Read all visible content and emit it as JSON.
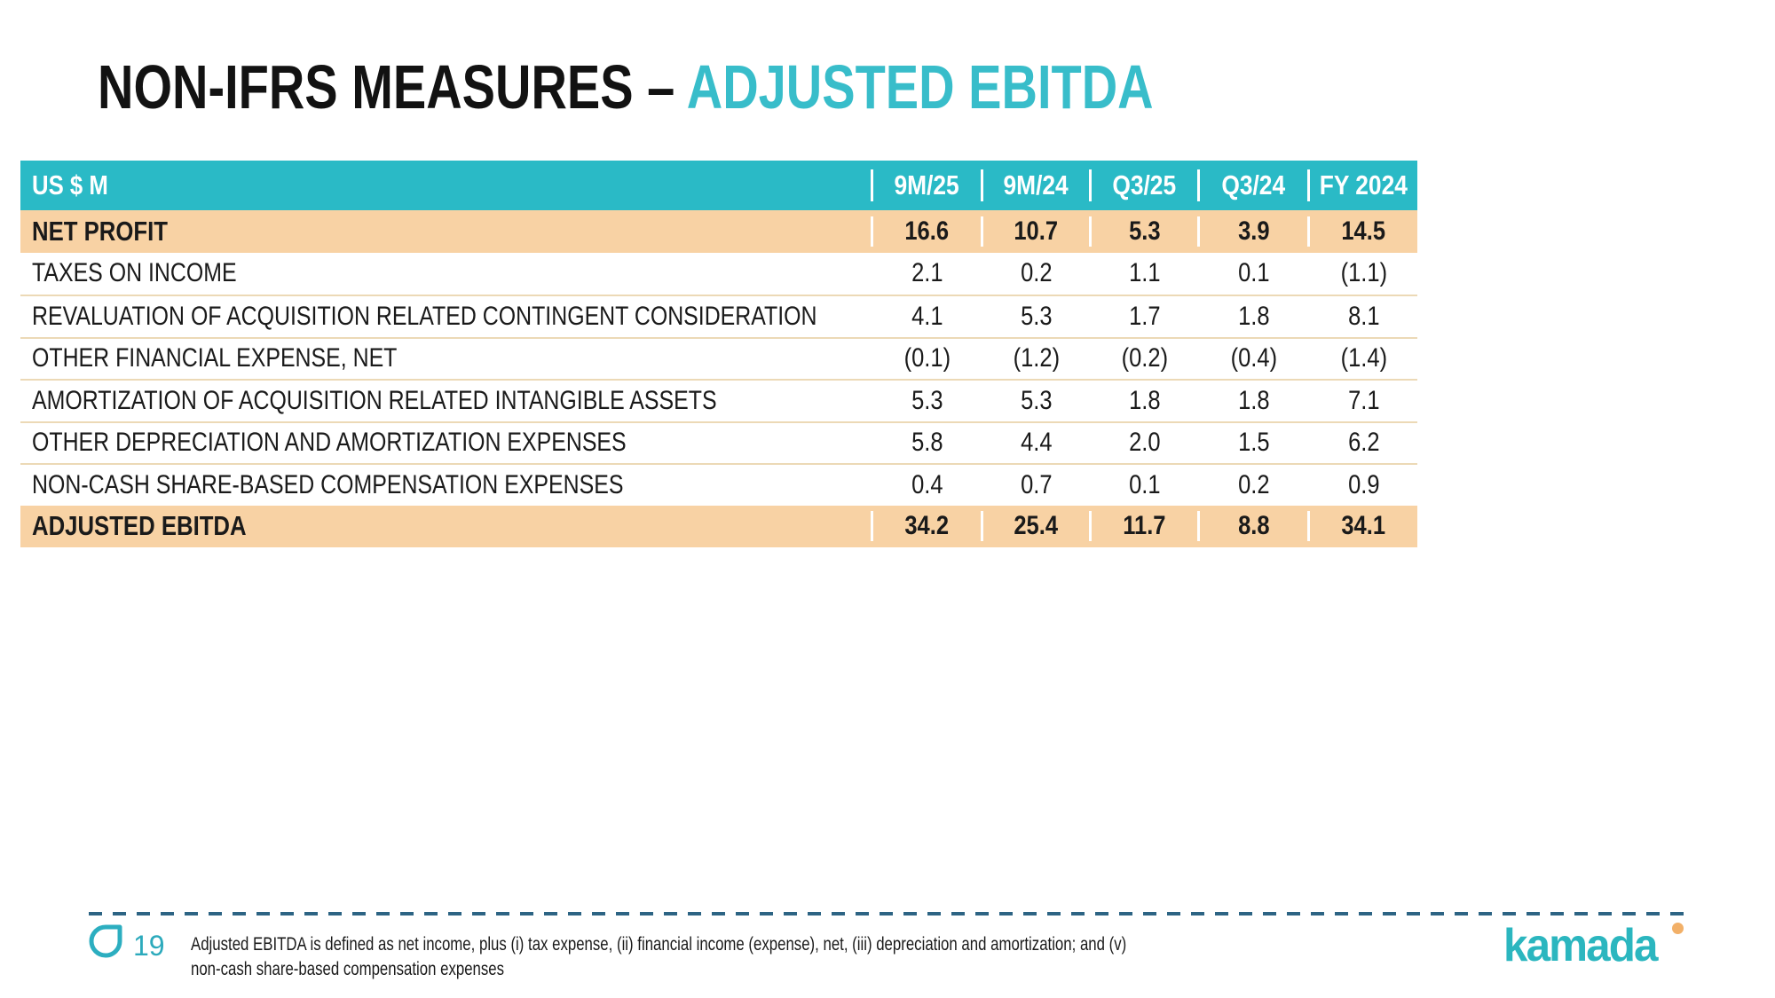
{
  "title": {
    "black": "NON-IFRS MEASURES – ",
    "teal": "ADJUSTED EBITDA"
  },
  "table": {
    "header": {
      "label": "US $ M",
      "columns": [
        "9M/25",
        "9M/24",
        "Q3/25",
        "Q3/24",
        "FY 2024"
      ]
    },
    "rows": [
      {
        "label": "NET PROFIT",
        "values": [
          "16.6",
          "10.7",
          "5.3",
          "3.9",
          "14.5"
        ],
        "highlight": true
      },
      {
        "label": "TAXES ON INCOME",
        "values": [
          "2.1",
          "0.2",
          "1.1",
          "0.1",
          "(1.1)"
        ],
        "highlight": false
      },
      {
        "label": "REVALUATION OF ACQUISITION RELATED CONTINGENT CONSIDERATION",
        "values": [
          "4.1",
          "5.3",
          "1.7",
          "1.8",
          "8.1"
        ],
        "highlight": false
      },
      {
        "label": "OTHER FINANCIAL EXPENSE, NET",
        "values": [
          "(0.1)",
          "(1.2)",
          "(0.2)",
          "(0.4)",
          "(1.4)"
        ],
        "highlight": false
      },
      {
        "label": "AMORTIZATION OF ACQUISITION RELATED INTANGIBLE ASSETS",
        "values": [
          "5.3",
          "5.3",
          "1.8",
          "1.8",
          "7.1"
        ],
        "highlight": false
      },
      {
        "label": "OTHER DEPRECIATION AND AMORTIZATION EXPENSES",
        "values": [
          "5.8",
          "4.4",
          "2.0",
          "1.5",
          "6.2"
        ],
        "highlight": false
      },
      {
        "label": "NON-CASH SHARE-BASED COMPENSATION EXPENSES",
        "values": [
          "0.4",
          "0.7",
          "0.1",
          "0.2",
          "0.9"
        ],
        "highlight": false
      },
      {
        "label": "ADJUSTED EBITDA",
        "values": [
          "34.2",
          "25.4",
          "11.7",
          "8.8",
          "34.1"
        ],
        "highlight": true
      }
    ]
  },
  "footer": {
    "page_number": "19",
    "footnote_line1": "Adjusted EBITDA is defined as net income, plus (i) tax expense, (ii) financial income (expense), net, (iii) depreciation and amortization; and (v)",
    "footnote_line2": "non-cash share-based compensation expenses",
    "logo_text": "kamada"
  },
  "icons": {
    "page_marker": "kamada-drop-icon",
    "logo_dot": "orange-dot"
  },
  "colors": {
    "header_teal": "#2abac6",
    "title_teal": "#38bdca",
    "highlight_row": "#f8d2a4",
    "row_separator": "#ecd9b6",
    "dashed_line": "#2d6484",
    "page_number_teal": "#2caabc",
    "logo_teal": "#2bb6bf",
    "logo_dot_orange": "#f2b068",
    "text_dark": "#1a1a1a"
  }
}
